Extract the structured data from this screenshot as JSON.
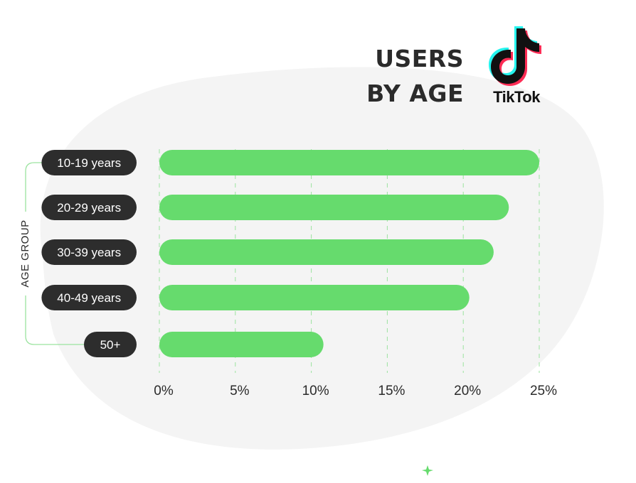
{
  "header": {
    "title_line1": "USERS",
    "title_line2": "BY AGE",
    "brand": "TikTok"
  },
  "colors": {
    "bar": "#66db6d",
    "pill": "#2d2d2d",
    "grid": "#9be39f",
    "blob": "#f4f4f4",
    "bracket": "#9be39f",
    "text": "#2b2b2b",
    "logo_cyan": "#25f4ee",
    "logo_red": "#fe2c55"
  },
  "icons": {
    "logo": "tiktok-note-icon",
    "sparkle": "plus-sparkle-icon"
  },
  "chart_data": {
    "type": "bar",
    "orientation": "horizontal",
    "categories": [
      "10-19 years",
      "20-29 years",
      "30-39 years",
      "40-49 years",
      "50+"
    ],
    "values": [
      25,
      23,
      22,
      20.4,
      10.8
    ],
    "ylabel": "AGE GROUP",
    "xlabel": "",
    "xlim": [
      0,
      25
    ],
    "xticks": [
      "0%",
      "5%",
      "10%",
      "15%",
      "20%",
      "25%"
    ],
    "grid": true,
    "legend": "none"
  }
}
